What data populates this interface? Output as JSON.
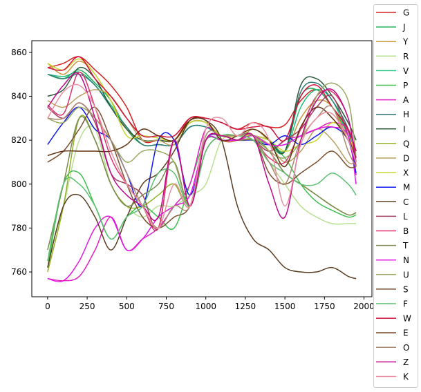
{
  "chart_data": {
    "type": "line",
    "title": "",
    "xlabel": "",
    "ylabel": "",
    "xlim": [
      -100,
      2050
    ],
    "ylim": [
      748.7,
      865.3
    ],
    "xticks": [
      0,
      250,
      500,
      750,
      1000,
      1250,
      1500,
      1750,
      2000
    ],
    "yticks": [
      760,
      780,
      800,
      820,
      840,
      860
    ],
    "grid": false,
    "legend_position": "right",
    "x": [
      0,
      100,
      200,
      300,
      400,
      500,
      600,
      700,
      800,
      900,
      1000,
      1100,
      1200,
      1300,
      1400,
      1500,
      1600,
      1700,
      1800,
      1900,
      1950
    ],
    "series": [
      {
        "name": "G",
        "color": "#d62020",
        "values": [
          853,
          855,
          858,
          852,
          845,
          835,
          820,
          820,
          820,
          830,
          830,
          828,
          825,
          828,
          826,
          827,
          838,
          843,
          835,
          825,
          815
        ]
      },
      {
        "name": "J",
        "color": "#1db35a",
        "values": [
          850,
          848,
          852,
          846,
          838,
          825,
          818,
          818,
          818,
          826,
          826,
          822,
          822,
          822,
          818,
          815,
          840,
          843,
          835,
          822,
          808
        ]
      },
      {
        "name": "Y",
        "color": "#c8983a",
        "values": [
          855,
          850,
          856,
          850,
          838,
          825,
          820,
          820,
          820,
          828,
          828,
          820,
          820,
          825,
          820,
          815,
          830,
          838,
          835,
          820,
          812
        ]
      },
      {
        "name": "R",
        "color": "#b7e08f",
        "values": [
          765,
          790,
          820,
          825,
          800,
          790,
          785,
          790,
          790,
          795,
          800,
          820,
          820,
          820,
          810,
          800,
          790,
          785,
          782,
          782,
          782
        ]
      },
      {
        "name": "V",
        "color": "#20c07a",
        "values": [
          850,
          849,
          851,
          845,
          836,
          826,
          818,
          818,
          818,
          826,
          826,
          822,
          822,
          822,
          820,
          815,
          835,
          843,
          838,
          822,
          810
        ]
      },
      {
        "name": "P",
        "color": "#3fbf4f",
        "values": [
          762,
          800,
          805,
          790,
          775,
          785,
          790,
          785,
          780,
          800,
          820,
          820,
          820,
          820,
          818,
          812,
          800,
          792,
          788,
          785,
          786
        ]
      },
      {
        "name": "A",
        "color": "#e020c0",
        "values": [
          757,
          756,
          758,
          770,
          785,
          770,
          775,
          780,
          790,
          800,
          825,
          820,
          820,
          820,
          815,
          820,
          822,
          825,
          828,
          824,
          804
        ]
      },
      {
        "name": "H",
        "color": "#2f7a76",
        "values": [
          850,
          848,
          850,
          845,
          835,
          826,
          818,
          818,
          818,
          826,
          826,
          822,
          822,
          822,
          820,
          815,
          842,
          846,
          838,
          825,
          808
        ]
      },
      {
        "name": "I",
        "color": "#2a5a3a",
        "values": [
          840,
          843,
          853,
          848,
          835,
          825,
          820,
          820,
          820,
          828,
          828,
          822,
          822,
          822,
          820,
          815,
          845,
          848,
          840,
          828,
          820
        ]
      },
      {
        "name": "Q",
        "color": "#8fb020",
        "values": [
          760,
          790,
          830,
          820,
          800,
          790,
          790,
          795,
          800,
          790,
          820,
          822,
          820,
          822,
          815,
          805,
          800,
          795,
          790,
          786,
          787
        ]
      },
      {
        "name": "D",
        "color": "#b8a060",
        "values": [
          838,
          835,
          840,
          843,
          840,
          830,
          820,
          820,
          818,
          828,
          828,
          822,
          822,
          822,
          818,
          810,
          815,
          825,
          820,
          810,
          810
        ]
      },
      {
        "name": "X",
        "color": "#c8d830",
        "values": [
          855,
          852,
          857,
          850,
          838,
          822,
          822,
          821,
          820,
          828,
          828,
          822,
          822,
          822,
          820,
          815,
          818,
          820,
          828,
          822,
          812
        ]
      },
      {
        "name": "M",
        "color": "#0a14f0",
        "values": [
          818,
          828,
          835,
          825,
          820,
          805,
          790,
          820,
          820,
          795,
          820,
          822,
          820,
          820,
          818,
          822,
          818,
          822,
          826,
          820,
          805
        ]
      },
      {
        "name": "C",
        "color": "#5a3c20",
        "values": [
          762,
          790,
          795,
          785,
          770,
          785,
          800,
          805,
          815,
          829,
          829,
          820,
          790,
          775,
          770,
          762,
          760,
          760,
          762,
          758,
          757
        ]
      },
      {
        "name": "L",
        "color": "#a04060",
        "values": [
          835,
          830,
          837,
          828,
          805,
          800,
          795,
          780,
          820,
          790,
          820,
          822,
          820,
          820,
          815,
          820,
          825,
          835,
          840,
          822,
          810
        ]
      },
      {
        "name": "B",
        "color": "#e0306a",
        "values": [
          836,
          832,
          851,
          835,
          812,
          800,
          790,
          780,
          820,
          790,
          820,
          822,
          820,
          820,
          812,
          810,
          825,
          840,
          842,
          830,
          808
        ]
      },
      {
        "name": "T",
        "color": "#7a8850",
        "values": [
          770,
          800,
          830,
          820,
          800,
          790,
          795,
          800,
          810,
          790,
          820,
          822,
          820,
          820,
          815,
          805,
          800,
          795,
          790,
          786,
          787
        ]
      },
      {
        "name": "N",
        "color": "#e018e0",
        "values": [
          757,
          756,
          765,
          780,
          785,
          770,
          775,
          785,
          790,
          795,
          820,
          820,
          820,
          822,
          818,
          818,
          822,
          825,
          826,
          822,
          800
        ]
      },
      {
        "name": "U",
        "color": "#98a860",
        "values": [
          830,
          828,
          835,
          830,
          820,
          810,
          815,
          815,
          810,
          790,
          820,
          822,
          822,
          822,
          815,
          812,
          820,
          840,
          846,
          838,
          812
        ]
      },
      {
        "name": "S",
        "color": "#7a5030",
        "values": [
          810,
          815,
          825,
          835,
          820,
          800,
          785,
          780,
          785,
          790,
          815,
          822,
          822,
          822,
          805,
          800,
          805,
          810,
          815,
          808,
          808
        ]
      },
      {
        "name": "F",
        "color": "#5cc070",
        "values": [
          765,
          800,
          800,
          790,
          775,
          785,
          790,
          805,
          805,
          790,
          815,
          822,
          822,
          820,
          810,
          805,
          800,
          800,
          805,
          800,
          795
        ]
      },
      {
        "name": "W",
        "color": "#d0103a",
        "values": [
          853,
          852,
          858,
          848,
          840,
          830,
          822,
          822,
          822,
          830,
          830,
          828,
          825,
          826,
          826,
          820,
          840,
          845,
          835,
          825,
          815
        ]
      },
      {
        "name": "E",
        "color": "#603010",
        "values": [
          813,
          815,
          815,
          815,
          815,
          818,
          825,
          822,
          820,
          829,
          829,
          820,
          822,
          825,
          820,
          808,
          826,
          835,
          830,
          820,
          812
        ]
      },
      {
        "name": "O",
        "color": "#a88870",
        "values": [
          830,
          830,
          837,
          830,
          820,
          805,
          790,
          780,
          790,
          790,
          822,
          822,
          822,
          822,
          810,
          800,
          820,
          830,
          835,
          815,
          808
        ]
      },
      {
        "name": "Z",
        "color": "#c0088a",
        "values": [
          835,
          845,
          850,
          830,
          805,
          795,
          790,
          785,
          820,
          790,
          820,
          822,
          820,
          822,
          800,
          785,
          820,
          838,
          843,
          830,
          810
        ]
      },
      {
        "name": "K",
        "color": "#e890a0",
        "values": [
          830,
          842,
          845,
          835,
          815,
          800,
          790,
          780,
          800,
          790,
          825,
          830,
          822,
          828,
          820,
          790,
          818,
          830,
          832,
          820,
          810
        ]
      }
    ]
  }
}
